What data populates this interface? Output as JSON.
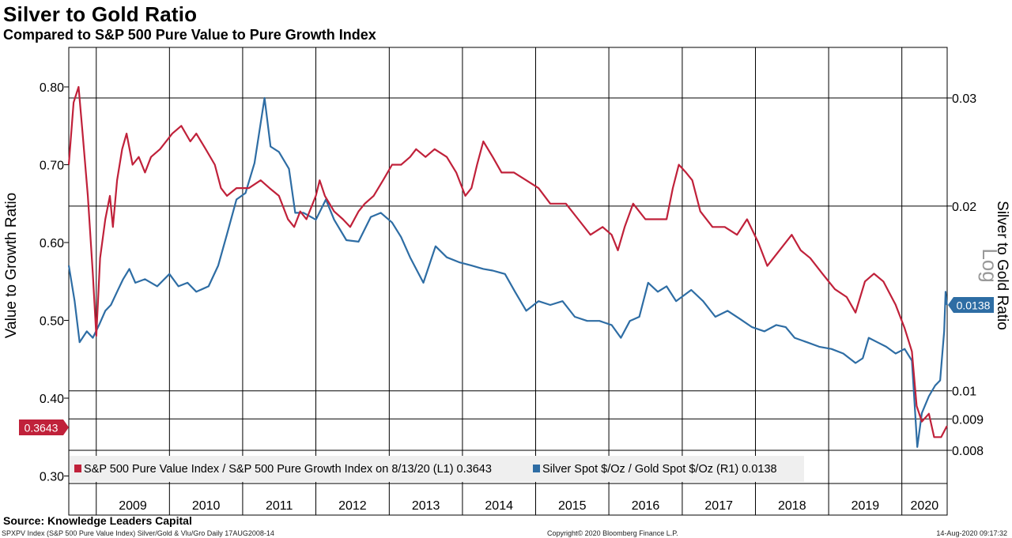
{
  "header": {
    "title": "Silver to Gold Ratio",
    "subtitle": "Compared to S&P 500 Pure Value to Pure Growth Index"
  },
  "footer": {
    "source": "Source: Knowledge Leaders Capital",
    "index_info": "SPXPV Index (S&P 500 Pure Value Index) Silver/Gold & Vlu/Gro  Daily 17AUG2008-14",
    "copyright": "Copyright© 2020 Bloomberg Finance L.P.",
    "timestamp": "14-Aug-2020 09:17:32"
  },
  "chart_data": {
    "type": "line",
    "x_range": [
      "2008-08-17",
      "2020-08-14"
    ],
    "x_tick_labels": [
      "2009",
      "2010",
      "2011",
      "2012",
      "2013",
      "2014",
      "2015",
      "2016",
      "2017",
      "2018",
      "2019",
      "2020"
    ],
    "left_axis": {
      "label": "Value to Growth Ratio",
      "ticks": [
        "0.80",
        "0.70",
        "0.60",
        "0.50",
        "0.40",
        "0.30"
      ],
      "tick_values": [
        0.8,
        0.7,
        0.6,
        0.5,
        0.4,
        0.3
      ],
      "range": [
        0.3,
        0.8
      ]
    },
    "right_axis": {
      "label": "Silver to Gold Ratio",
      "scale": "log",
      "scale_label": "Log",
      "ticks": [
        "0.03",
        "0.02",
        "0.01",
        "0.009",
        "0.008"
      ],
      "tick_values": [
        0.03,
        0.02,
        0.01,
        0.009,
        0.008
      ]
    },
    "legend": {
      "position": "bottom-left",
      "entries": [
        "S&P 500 Pure Value Index / S&P 500 Pure Growth Index on 8/13/20 (L1) 0.3643",
        "Silver Spot $/Oz / Gold Spot $/Oz (R1) 0.0138"
      ]
    },
    "last_value_tags": {
      "left": "0.3643",
      "right": "0.0138"
    },
    "series": [
      {
        "name": "S&P 500 Pure Value Index / S&P 500 Pure Growth Index",
        "axis": "left",
        "color": "#c0213a",
        "points": [
          [
            "2008-08-17",
            0.7
          ],
          [
            "2008-09-10",
            0.78
          ],
          [
            "2008-10-05",
            0.8
          ],
          [
            "2008-10-25",
            0.74
          ],
          [
            "2008-11-20",
            0.66
          ],
          [
            "2008-12-15",
            0.56
          ],
          [
            "2009-01-01",
            0.48
          ],
          [
            "2009-01-20",
            0.58
          ],
          [
            "2009-02-15",
            0.63
          ],
          [
            "2009-03-10",
            0.66
          ],
          [
            "2009-03-25",
            0.62
          ],
          [
            "2009-04-15",
            0.68
          ],
          [
            "2009-05-10",
            0.72
          ],
          [
            "2009-06-01",
            0.74
          ],
          [
            "2009-07-01",
            0.7
          ],
          [
            "2009-08-01",
            0.71
          ],
          [
            "2009-09-01",
            0.69
          ],
          [
            "2009-10-01",
            0.71
          ],
          [
            "2009-11-15",
            0.72
          ],
          [
            "2010-01-15",
            0.74
          ],
          [
            "2010-03-01",
            0.75
          ],
          [
            "2010-04-15",
            0.73
          ],
          [
            "2010-05-15",
            0.74
          ],
          [
            "2010-07-01",
            0.72
          ],
          [
            "2010-08-15",
            0.7
          ],
          [
            "2010-09-15",
            0.67
          ],
          [
            "2010-10-15",
            0.66
          ],
          [
            "2010-12-01",
            0.67
          ],
          [
            "2011-02-01",
            0.67
          ],
          [
            "2011-04-01",
            0.68
          ],
          [
            "2011-05-15",
            0.67
          ],
          [
            "2011-07-01",
            0.66
          ],
          [
            "2011-08-15",
            0.63
          ],
          [
            "2011-09-15",
            0.62
          ],
          [
            "2011-10-15",
            0.64
          ],
          [
            "2011-11-15",
            0.63
          ],
          [
            "2012-01-01",
            0.66
          ],
          [
            "2012-01-20",
            0.68
          ],
          [
            "2012-02-15",
            0.66
          ],
          [
            "2012-04-01",
            0.64
          ],
          [
            "2012-05-15",
            0.63
          ],
          [
            "2012-06-20",
            0.62
          ],
          [
            "2012-08-01",
            0.64
          ],
          [
            "2012-09-01",
            0.65
          ],
          [
            "2012-10-15",
            0.66
          ],
          [
            "2012-12-01",
            0.68
          ],
          [
            "2013-01-15",
            0.7
          ],
          [
            "2013-03-01",
            0.7
          ],
          [
            "2013-04-15",
            0.71
          ],
          [
            "2013-05-15",
            0.72
          ],
          [
            "2013-07-01",
            0.71
          ],
          [
            "2013-08-15",
            0.72
          ],
          [
            "2013-10-15",
            0.71
          ],
          [
            "2013-12-01",
            0.69
          ],
          [
            "2014-01-15",
            0.66
          ],
          [
            "2014-02-15",
            0.67
          ],
          [
            "2014-03-15",
            0.7
          ],
          [
            "2014-04-15",
            0.73
          ],
          [
            "2014-06-01",
            0.71
          ],
          [
            "2014-07-15",
            0.69
          ],
          [
            "2014-09-15",
            0.69
          ],
          [
            "2014-11-15",
            0.68
          ],
          [
            "2015-01-15",
            0.67
          ],
          [
            "2015-03-15",
            0.65
          ],
          [
            "2015-06-01",
            0.65
          ],
          [
            "2015-08-01",
            0.63
          ],
          [
            "2015-10-01",
            0.61
          ],
          [
            "2015-12-01",
            0.62
          ],
          [
            "2016-01-15",
            0.61
          ],
          [
            "2016-02-15",
            0.59
          ],
          [
            "2016-03-20",
            0.62
          ],
          [
            "2016-05-01",
            0.65
          ],
          [
            "2016-07-01",
            0.63
          ],
          [
            "2016-09-01",
            0.63
          ],
          [
            "2016-10-15",
            0.63
          ],
          [
            "2016-11-15",
            0.67
          ],
          [
            "2016-12-15",
            0.7
          ],
          [
            "2017-01-20",
            0.69
          ],
          [
            "2017-02-20",
            0.68
          ],
          [
            "2017-04-01",
            0.64
          ],
          [
            "2017-06-01",
            0.62
          ],
          [
            "2017-08-01",
            0.62
          ],
          [
            "2017-10-01",
            0.61
          ],
          [
            "2017-11-20",
            0.63
          ],
          [
            "2018-01-15",
            0.6
          ],
          [
            "2018-03-01",
            0.57
          ],
          [
            "2018-05-01",
            0.59
          ],
          [
            "2018-07-01",
            0.61
          ],
          [
            "2018-08-15",
            0.59
          ],
          [
            "2018-10-01",
            0.58
          ],
          [
            "2018-12-01",
            0.56
          ],
          [
            "2019-02-01",
            0.54
          ],
          [
            "2019-04-01",
            0.53
          ],
          [
            "2019-05-15",
            0.51
          ],
          [
            "2019-07-01",
            0.55
          ],
          [
            "2019-08-15",
            0.56
          ],
          [
            "2019-10-01",
            0.55
          ],
          [
            "2019-12-01",
            0.52
          ],
          [
            "2020-01-15",
            0.49
          ],
          [
            "2020-02-20",
            0.46
          ],
          [
            "2020-03-15",
            0.39
          ],
          [
            "2020-04-10",
            0.37
          ],
          [
            "2020-05-15",
            0.38
          ],
          [
            "2020-06-10",
            0.35
          ],
          [
            "2020-07-15",
            0.35
          ],
          [
            "2020-08-13",
            0.3643
          ]
        ]
      },
      {
        "name": "Silver Spot $/Oz / Gold Spot $/Oz",
        "axis": "right",
        "color": "#2e6da4",
        "points": [
          [
            "2008-08-17",
            0.016
          ],
          [
            "2008-09-15",
            0.014
          ],
          [
            "2008-10-10",
            0.012
          ],
          [
            "2008-11-15",
            0.0125
          ],
          [
            "2008-12-15",
            0.0122
          ],
          [
            "2009-01-15",
            0.0128
          ],
          [
            "2009-02-15",
            0.0135
          ],
          [
            "2009-03-15",
            0.0138
          ],
          [
            "2009-04-15",
            0.0145
          ],
          [
            "2009-05-15",
            0.0152
          ],
          [
            "2009-06-15",
            0.0158
          ],
          [
            "2009-07-15",
            0.015
          ],
          [
            "2009-09-01",
            0.0152
          ],
          [
            "2009-11-01",
            0.0148
          ],
          [
            "2010-01-01",
            0.0155
          ],
          [
            "2010-02-15",
            0.0148
          ],
          [
            "2010-04-01",
            0.015
          ],
          [
            "2010-05-15",
            0.0145
          ],
          [
            "2010-07-15",
            0.0148
          ],
          [
            "2010-09-01",
            0.016
          ],
          [
            "2010-10-15",
            0.018
          ],
          [
            "2010-12-01",
            0.0205
          ],
          [
            "2011-01-15",
            0.021
          ],
          [
            "2011-03-01",
            0.0235
          ],
          [
            "2011-04-20",
            0.03
          ],
          [
            "2011-05-20",
            0.025
          ],
          [
            "2011-07-01",
            0.0245
          ],
          [
            "2011-08-20",
            0.023
          ],
          [
            "2011-09-20",
            0.0195
          ],
          [
            "2011-11-01",
            0.0195
          ],
          [
            "2012-01-01",
            0.019
          ],
          [
            "2012-02-20",
            0.0205
          ],
          [
            "2012-04-01",
            0.019
          ],
          [
            "2012-06-01",
            0.0176
          ],
          [
            "2012-08-01",
            0.0175
          ],
          [
            "2012-10-01",
            0.0192
          ],
          [
            "2012-11-20",
            0.0195
          ],
          [
            "2013-01-15",
            0.0188
          ],
          [
            "2013-03-01",
            0.0178
          ],
          [
            "2013-04-15",
            0.0165
          ],
          [
            "2013-06-20",
            0.015
          ],
          [
            "2013-08-20",
            0.0172
          ],
          [
            "2013-10-15",
            0.0165
          ],
          [
            "2013-12-15",
            0.0162
          ],
          [
            "2014-02-15",
            0.016
          ],
          [
            "2014-04-15",
            0.0158
          ],
          [
            "2014-06-01",
            0.0157
          ],
          [
            "2014-08-01",
            0.0155
          ],
          [
            "2014-09-20",
            0.0145
          ],
          [
            "2014-11-15",
            0.0135
          ],
          [
            "2015-01-15",
            0.014
          ],
          [
            "2015-03-15",
            0.0138
          ],
          [
            "2015-05-15",
            0.014
          ],
          [
            "2015-07-15",
            0.0132
          ],
          [
            "2015-09-15",
            0.013
          ],
          [
            "2015-11-15",
            0.013
          ],
          [
            "2016-01-15",
            0.0128
          ],
          [
            "2016-03-01",
            0.0122
          ],
          [
            "2016-04-15",
            0.013
          ],
          [
            "2016-06-01",
            0.0132
          ],
          [
            "2016-07-15",
            0.015
          ],
          [
            "2016-09-01",
            0.0145
          ],
          [
            "2016-10-15",
            0.0148
          ],
          [
            "2016-12-01",
            0.014
          ],
          [
            "2017-02-15",
            0.0146
          ],
          [
            "2017-04-15",
            0.014
          ],
          [
            "2017-06-15",
            0.0132
          ],
          [
            "2017-08-15",
            0.0135
          ],
          [
            "2017-10-15",
            0.0131
          ],
          [
            "2017-12-15",
            0.0127
          ],
          [
            "2018-02-15",
            0.0125
          ],
          [
            "2018-04-15",
            0.0128
          ],
          [
            "2018-06-01",
            0.0127
          ],
          [
            "2018-07-15",
            0.0122
          ],
          [
            "2018-09-15",
            0.012
          ],
          [
            "2018-11-15",
            0.0118
          ],
          [
            "2019-01-15",
            0.0117
          ],
          [
            "2019-03-15",
            0.0115
          ],
          [
            "2019-05-15",
            0.0111
          ],
          [
            "2019-06-20",
            0.0113
          ],
          [
            "2019-07-20",
            0.0122
          ],
          [
            "2019-09-01",
            0.012
          ],
          [
            "2019-10-15",
            0.0118
          ],
          [
            "2019-12-01",
            0.0115
          ],
          [
            "2020-01-15",
            0.0117
          ],
          [
            "2020-02-20",
            0.0112
          ],
          [
            "2020-03-18",
            0.0081
          ],
          [
            "2020-04-10",
            0.0092
          ],
          [
            "2020-05-15",
            0.0098
          ],
          [
            "2020-06-15",
            0.0102
          ],
          [
            "2020-07-10",
            0.0104
          ],
          [
            "2020-07-30",
            0.0125
          ],
          [
            "2020-08-06",
            0.0145
          ],
          [
            "2020-08-13",
            0.0138
          ]
        ]
      }
    ]
  },
  "colors": {
    "value_growth": "#c0213a",
    "silver_gold": "#2e6da4",
    "grid": "#000000"
  }
}
